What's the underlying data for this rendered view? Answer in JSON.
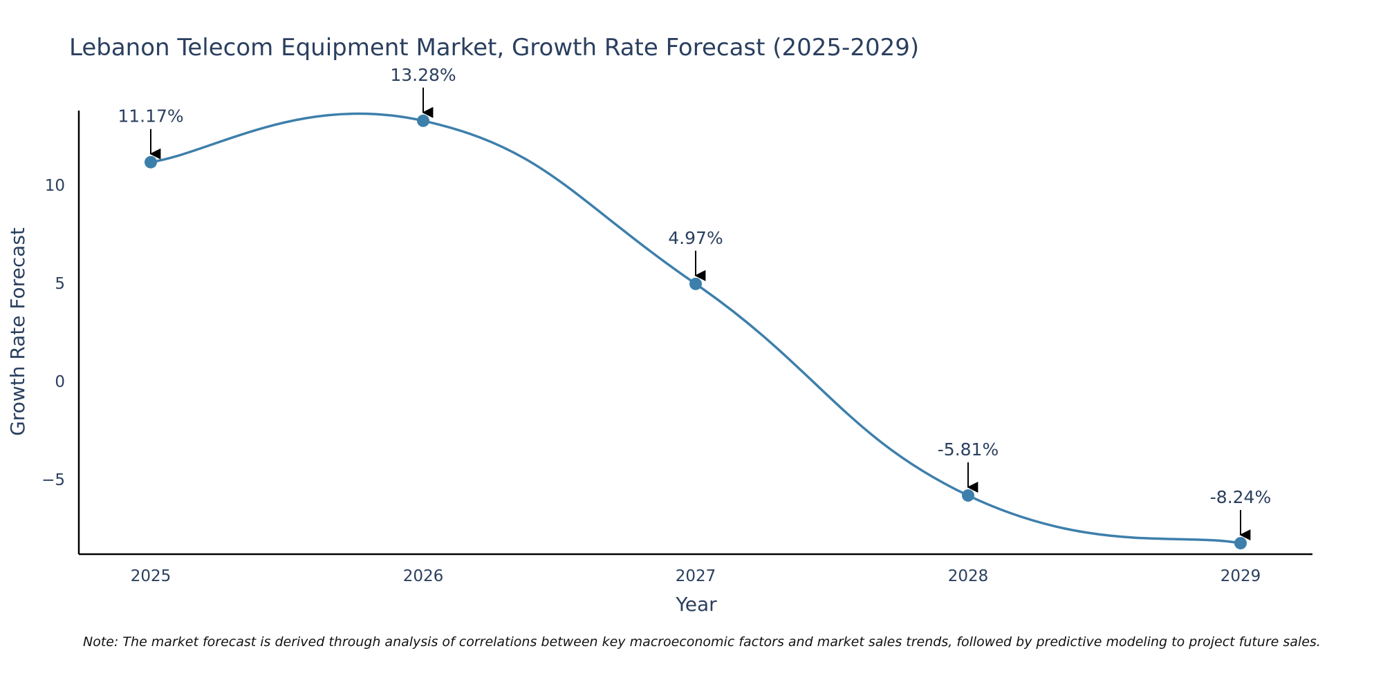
{
  "chart_data": {
    "type": "line",
    "title": "Lebanon Telecom Equipment Market, Growth Rate Forecast (2025-2029)",
    "xlabel": "Year",
    "ylabel": "Growth Rate Forecast",
    "categories": [
      "2025",
      "2026",
      "2027",
      "2028",
      "2029"
    ],
    "values": [
      11.17,
      13.28,
      4.97,
      -5.81,
      -8.24
    ],
    "data_labels": [
      "11.17%",
      "13.28%",
      "4.97%",
      "-5.81%",
      "-8.24%"
    ],
    "y_ticks": [
      -5,
      0,
      5,
      10
    ],
    "y_tick_labels": [
      "−5",
      "0",
      "5",
      "10"
    ],
    "ylim": [
      -8.8,
      13.8
    ],
    "line_color": "#3d7fab",
    "marker_color": "#3d7fab",
    "arrow_color": "#000000",
    "grid": false,
    "line_shape": "spline"
  },
  "note": "Note: The market forecast is derived through analysis of correlations between key macroeconomic factors and market sales trends, followed by predictive modeling to project future sales."
}
